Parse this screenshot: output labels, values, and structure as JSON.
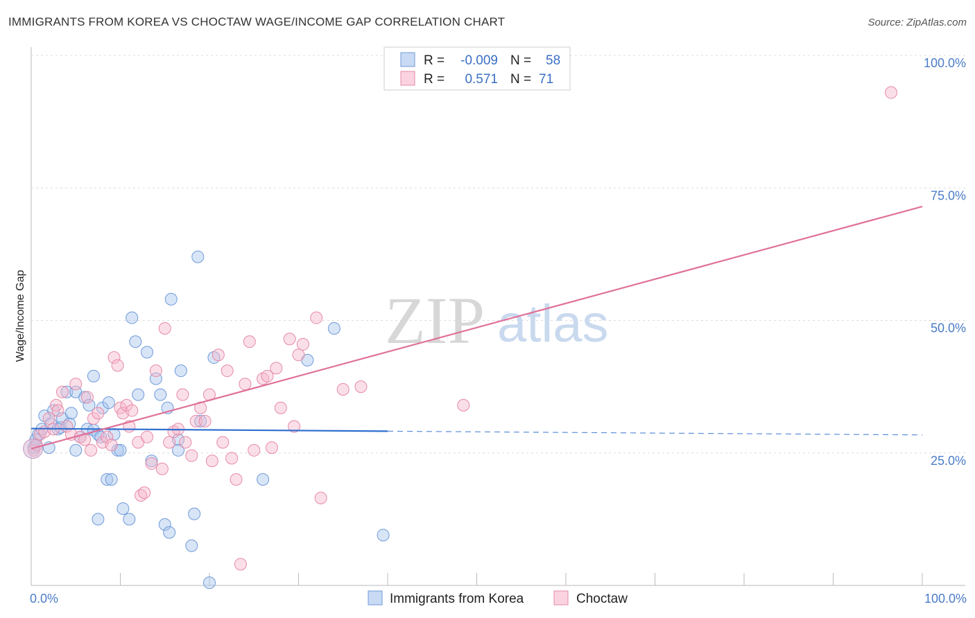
{
  "header": {
    "title": "IMMIGRANTS FROM KOREA VS CHOCTAW WAGE/INCOME GAP CORRELATION CHART",
    "source": "Source: ZipAtlas.com"
  },
  "watermark": {
    "zip": "ZIP",
    "atlas": "atlas"
  },
  "legend": {
    "rows": [
      {
        "r_label": "R =",
        "r_value": "-0.009",
        "n_label": "N =",
        "n_value": "58",
        "color": "#a9c6ee"
      },
      {
        "r_label": "R =",
        "r_value": "0.571",
        "n_label": "N =",
        "n_value": "71",
        "color": "#f6b9cd"
      }
    ]
  },
  "bottom_legend": [
    {
      "label": "Immigrants from Korea",
      "color": "#a9c6ee"
    },
    {
      "label": "Choctaw",
      "color": "#f6b9cd"
    }
  ],
  "chart_data": {
    "type": "scatter",
    "title": "IMMIGRANTS FROM KOREA VS CHOCTAW WAGE/INCOME GAP CORRELATION CHART",
    "xlabel": "",
    "ylabel": "Wage/Income Gap",
    "xlim": [
      0,
      100
    ],
    "ylim": [
      0,
      100
    ],
    "x_tick_labels": [
      "0.0%",
      "100.0%"
    ],
    "y_ticks": [
      25,
      50,
      75,
      100
    ],
    "y_tick_labels": [
      "25.0%",
      "50.0%",
      "75.0%",
      "100.0%"
    ],
    "grid": true,
    "series": [
      {
        "name": "Immigrants from Korea",
        "color": "#a9c6ee",
        "stroke": "#6f9ad8",
        "trend": {
          "x0": 0,
          "y0": 29.6,
          "x1": 40,
          "y1": 29.1,
          "dash_to_x": 100,
          "dash_y": 28.4,
          "color": "#2f6fcf"
        },
        "points": [
          [
            0.3,
            26.0
          ],
          [
            0.5,
            27.5
          ],
          [
            0.8,
            28.5
          ],
          [
            1.2,
            29.5
          ],
          [
            1.5,
            32.0
          ],
          [
            2.0,
            26.0
          ],
          [
            2.2,
            30.5
          ],
          [
            2.5,
            33.0
          ],
          [
            3.0,
            29.5
          ],
          [
            3.3,
            29.8
          ],
          [
            3.5,
            31.5
          ],
          [
            4.0,
            36.5
          ],
          [
            4.3,
            30.5
          ],
          [
            4.5,
            32.5
          ],
          [
            5.0,
            36.5
          ],
          [
            5.0,
            25.5
          ],
          [
            5.5,
            28.0
          ],
          [
            6.0,
            35.5
          ],
          [
            6.3,
            29.5
          ],
          [
            6.5,
            34.0
          ],
          [
            7.0,
            29.3
          ],
          [
            7.0,
            39.5
          ],
          [
            7.5,
            28.5
          ],
          [
            7.5,
            12.5
          ],
          [
            7.8,
            28.0
          ],
          [
            8.0,
            33.5
          ],
          [
            8.5,
            20.0
          ],
          [
            8.7,
            34.5
          ],
          [
            9.0,
            20.0
          ],
          [
            9.3,
            28.5
          ],
          [
            9.7,
            25.5
          ],
          [
            10.0,
            25.5
          ],
          [
            10.3,
            14.5
          ],
          [
            11.0,
            12.5
          ],
          [
            11.3,
            50.5
          ],
          [
            11.7,
            46.0
          ],
          [
            12.0,
            36.0
          ],
          [
            13.0,
            44.0
          ],
          [
            13.5,
            23.5
          ],
          [
            14.0,
            39.0
          ],
          [
            14.5,
            36.0
          ],
          [
            15.0,
            11.5
          ],
          [
            15.3,
            33.5
          ],
          [
            15.5,
            10.0
          ],
          [
            15.7,
            54.0
          ],
          [
            16.5,
            27.5
          ],
          [
            16.5,
            25.5
          ],
          [
            16.8,
            40.5
          ],
          [
            18.0,
            7.5
          ],
          [
            18.3,
            13.5
          ],
          [
            18.7,
            62.0
          ],
          [
            19.0,
            31.0
          ],
          [
            20.0,
            0.5
          ],
          [
            20.5,
            43.0
          ],
          [
            26.0,
            20.0
          ],
          [
            31.0,
            42.5
          ],
          [
            34.0,
            48.5
          ],
          [
            39.5,
            9.5
          ]
        ]
      },
      {
        "name": "Choctaw",
        "color": "#f6b9cd",
        "stroke": "#e58aa8",
        "trend": {
          "x0": 0,
          "y0": 25.8,
          "x1": 100,
          "y1": 71.5,
          "color": "#e0709a"
        },
        "points": [
          [
            0.3,
            25.5
          ],
          [
            0.6,
            26.5
          ],
          [
            1.0,
            28.5
          ],
          [
            1.5,
            29.0
          ],
          [
            2.0,
            31.5
          ],
          [
            2.5,
            29.5
          ],
          [
            2.8,
            34.0
          ],
          [
            3.0,
            33.0
          ],
          [
            3.5,
            36.5
          ],
          [
            4.0,
            30.0
          ],
          [
            4.5,
            28.5
          ],
          [
            5.0,
            38.0
          ],
          [
            5.5,
            28.0
          ],
          [
            6.0,
            27.5
          ],
          [
            6.3,
            35.5
          ],
          [
            6.7,
            25.5
          ],
          [
            7.0,
            31.5
          ],
          [
            7.5,
            32.5
          ],
          [
            8.0,
            27.0
          ],
          [
            8.5,
            28.0
          ],
          [
            9.0,
            26.5
          ],
          [
            9.3,
            43.0
          ],
          [
            9.7,
            41.5
          ],
          [
            10.0,
            33.5
          ],
          [
            10.3,
            32.5
          ],
          [
            10.7,
            34.0
          ],
          [
            11.0,
            30.0
          ],
          [
            11.3,
            33.0
          ],
          [
            12.0,
            27.0
          ],
          [
            12.3,
            17.0
          ],
          [
            12.7,
            17.5
          ],
          [
            13.0,
            28.0
          ],
          [
            13.5,
            23.0
          ],
          [
            14.0,
            40.5
          ],
          [
            14.7,
            22.0
          ],
          [
            15.0,
            48.5
          ],
          [
            15.5,
            27.0
          ],
          [
            16.0,
            29.0
          ],
          [
            16.5,
            29.5
          ],
          [
            17.0,
            36.0
          ],
          [
            17.3,
            27.0
          ],
          [
            18.0,
            24.5
          ],
          [
            18.5,
            31.0
          ],
          [
            19.0,
            33.5
          ],
          [
            19.5,
            31.0
          ],
          [
            20.0,
            36.0
          ],
          [
            20.3,
            23.5
          ],
          [
            21.0,
            43.5
          ],
          [
            21.5,
            27.0
          ],
          [
            22.0,
            40.5
          ],
          [
            22.5,
            24.0
          ],
          [
            23.0,
            20.0
          ],
          [
            23.5,
            4.0
          ],
          [
            24.0,
            38.0
          ],
          [
            24.5,
            46.0
          ],
          [
            25.0,
            25.5
          ],
          [
            26.0,
            39.0
          ],
          [
            26.5,
            39.5
          ],
          [
            27.0,
            26.0
          ],
          [
            27.5,
            41.0
          ],
          [
            28.0,
            33.5
          ],
          [
            29.0,
            46.5
          ],
          [
            29.5,
            30.0
          ],
          [
            30.0,
            43.5
          ],
          [
            30.5,
            45.5
          ],
          [
            32.0,
            50.5
          ],
          [
            32.5,
            16.5
          ],
          [
            35.0,
            37.0
          ],
          [
            37.0,
            37.5
          ],
          [
            48.5,
            34.0
          ],
          [
            96.5,
            93.0
          ]
        ]
      }
    ]
  }
}
